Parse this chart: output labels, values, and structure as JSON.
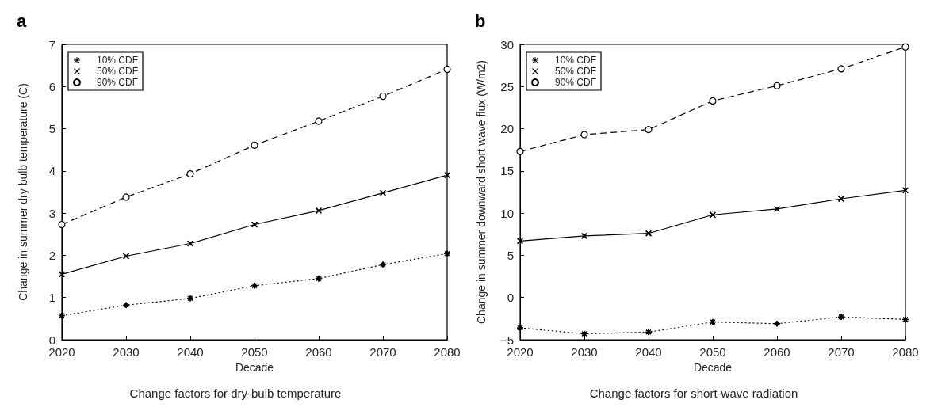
{
  "chart_data": [
    {
      "type": "line",
      "title": "a",
      "xlabel": "Decade",
      "ylabel": "Change in summer dry bulb temperature (C)",
      "annotations": [
        "Change factors for dry-bulb temperature"
      ],
      "x": [
        2020,
        2030,
        2040,
        2050,
        2060,
        2070,
        2080
      ],
      "xlim": [
        2020,
        2080
      ],
      "xticks": [
        2020,
        2030,
        2040,
        2050,
        2060,
        2070,
        2080
      ],
      "ylim": [
        0,
        7
      ],
      "yticks": [
        0,
        1,
        2,
        3,
        4,
        5,
        6,
        7
      ],
      "grid": false,
      "legend": "top left",
      "series": [
        {
          "name": "10% CDF",
          "color": "#000000",
          "marker": "star",
          "line_style": "dotted",
          "values": [
            0.57,
            0.82,
            0.98,
            1.28,
            1.45,
            1.78,
            2.04
          ]
        },
        {
          "name": "50% CDF",
          "color": "#000000",
          "marker": "cross",
          "line_style": "solid",
          "values": [
            1.55,
            1.98,
            2.28,
            2.73,
            3.06,
            3.48,
            3.9
          ]
        },
        {
          "name": "90% CDF",
          "color": "#000000",
          "marker": "circle",
          "line_style": "dashed",
          "values": [
            2.73,
            3.38,
            3.93,
            4.61,
            5.18,
            5.77,
            6.41
          ]
        }
      ]
    },
    {
      "type": "line",
      "title": "b",
      "xlabel": "Decade",
      "ylabel": "Change in summer downward short wave flux (W/m2)",
      "annotations": [
        "Change factors for short-wave radiation"
      ],
      "x": [
        2020,
        2030,
        2040,
        2050,
        2060,
        2070,
        2080
      ],
      "xlim": [
        2020,
        2080
      ],
      "xticks": [
        2020,
        2030,
        2040,
        2050,
        2060,
        2070,
        2080
      ],
      "ylim": [
        -5,
        30
      ],
      "yticks": [
        -5,
        0,
        5,
        10,
        15,
        20,
        25,
        30
      ],
      "grid": false,
      "legend": "top left",
      "series": [
        {
          "name": "10% CDF",
          "color": "#000000",
          "marker": "star",
          "line_style": "dotted",
          "values": [
            -3.6,
            -4.3,
            -4.1,
            -2.9,
            -3.1,
            -2.3,
            -2.6
          ]
        },
        {
          "name": "50% CDF",
          "color": "#000000",
          "marker": "cross",
          "line_style": "solid",
          "values": [
            6.7,
            7.3,
            7.6,
            9.8,
            10.5,
            11.7,
            12.7
          ]
        },
        {
          "name": "90% CDF",
          "color": "#000000",
          "marker": "circle",
          "line_style": "dashed",
          "values": [
            17.3,
            19.3,
            19.9,
            23.3,
            25.1,
            27.1,
            29.7
          ]
        }
      ]
    }
  ]
}
